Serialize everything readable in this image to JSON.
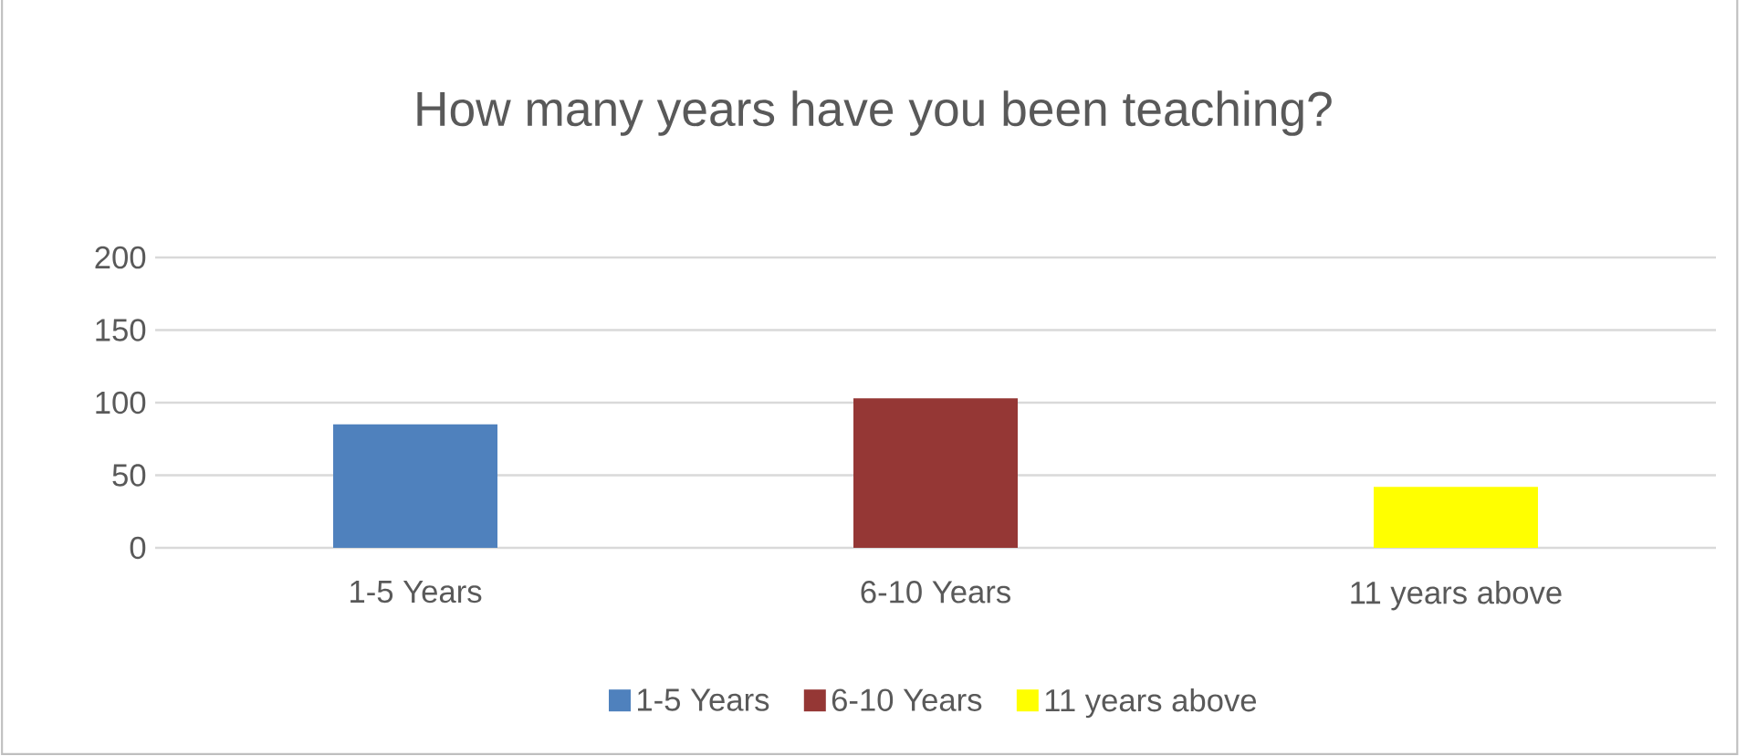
{
  "chart_data": {
    "type": "bar",
    "title": "How many years have you been teaching?",
    "categories": [
      "1-5 Years",
      "6-10 Years",
      "11 years above"
    ],
    "series": [
      {
        "name": "1-5 Years",
        "color": "#4f81bd",
        "values": [
          85,
          null,
          null
        ]
      },
      {
        "name": "6-10 Years",
        "color": "#953735",
        "values": [
          null,
          103,
          null
        ]
      },
      {
        "name": "11 years above",
        "color": "#ffff00",
        "values": [
          null,
          null,
          42
        ]
      }
    ],
    "ylim": [
      0,
      200
    ],
    "yticks": [
      0,
      50,
      100,
      150,
      200
    ],
    "grid": "y",
    "legend": "bottom"
  }
}
